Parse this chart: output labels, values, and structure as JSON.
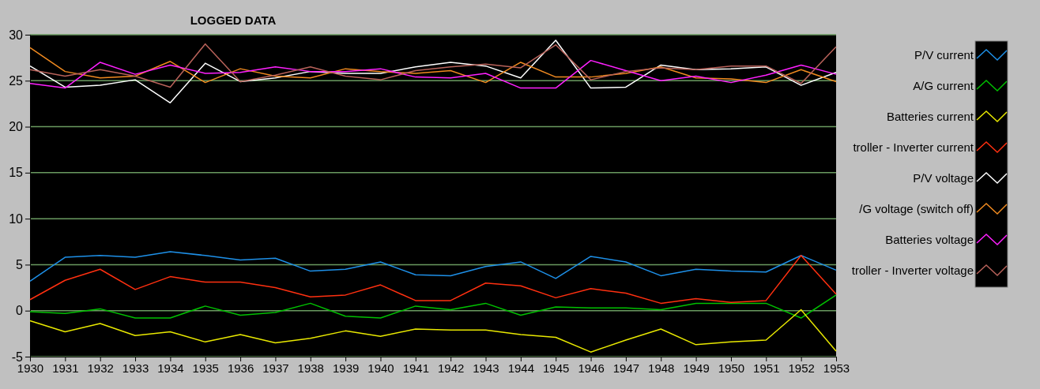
{
  "chart_data": {
    "type": "line",
    "title": "LOGGED DATA",
    "x": [
      1930,
      1931,
      1932,
      1933,
      1934,
      1935,
      1936,
      1937,
      1938,
      1939,
      1940,
      1941,
      1942,
      1943,
      1944,
      1945,
      1946,
      1947,
      1948,
      1949,
      1950,
      1951,
      1952,
      1953
    ],
    "xlim": [
      1930,
      1953
    ],
    "xticks": [
      1930,
      1931,
      1932,
      1933,
      1934,
      1935,
      1936,
      1937,
      1938,
      1939,
      1940,
      1941,
      1942,
      1943,
      1944,
      1945,
      1946,
      1947,
      1948,
      1949,
      1950,
      1951,
      1952,
      1953
    ],
    "ylim": [
      -5,
      30
    ],
    "yticks": [
      -5,
      0,
      5,
      10,
      15,
      20,
      25,
      30
    ],
    "grid": "y",
    "legend": "right",
    "marker": "none",
    "line_style": "solid",
    "series": [
      {
        "name": "P/V current",
        "color": "#1e90e8",
        "values": [
          3.2,
          5.8,
          6.0,
          5.8,
          6.4,
          6.0,
          5.5,
          5.7,
          4.3,
          4.5,
          5.3,
          3.9,
          3.8,
          4.8,
          5.3,
          3.5,
          5.9,
          5.3,
          3.8,
          4.5,
          4.3,
          4.2,
          6.0,
          4.4
        ]
      },
      {
        "name": "A/G current",
        "color": "#00c000",
        "values": [
          -0.1,
          -0.3,
          0.2,
          -0.8,
          -0.8,
          0.5,
          -0.5,
          -0.2,
          0.8,
          -0.6,
          -0.8,
          0.5,
          0.1,
          0.8,
          -0.5,
          0.4,
          0.3,
          0.3,
          0.1,
          0.8,
          0.8,
          0.8,
          -0.8,
          1.7
        ]
      },
      {
        "name": "Batteries current",
        "color": "#e8e800",
        "values": [
          -1.1,
          -2.3,
          -1.4,
          -2.7,
          -2.3,
          -3.4,
          -2.6,
          -3.5,
          -3.0,
          -2.2,
          -2.8,
          -2.0,
          -2.1,
          -2.1,
          -2.6,
          -2.9,
          -4.5,
          -3.2,
          -2.0,
          -3.7,
          -3.4,
          -3.2,
          0.1,
          -4.4
        ]
      },
      {
        "name": "troller - Inverter current",
        "color": "#ff3010",
        "values": [
          1.2,
          3.3,
          4.5,
          2.3,
          3.7,
          3.1,
          3.1,
          2.5,
          1.5,
          1.7,
          2.8,
          1.1,
          1.1,
          3.0,
          2.7,
          1.4,
          2.4,
          1.9,
          0.8,
          1.3,
          0.9,
          1.1,
          6.0,
          1.8
        ]
      },
      {
        "name": "P/V voltage",
        "color": "#ffffff",
        "values": [
          26.6,
          24.3,
          24.5,
          25.1,
          22.6,
          26.9,
          24.9,
          25.3,
          26.0,
          25.8,
          25.8,
          26.5,
          27.0,
          26.6,
          25.3,
          29.4,
          24.2,
          24.3,
          26.7,
          26.2,
          26.3,
          26.5,
          24.5,
          25.9
        ]
      },
      {
        "name": "/G voltage (switch off)",
        "color": "#f08a20",
        "values": [
          28.6,
          26.0,
          25.3,
          25.5,
          27.1,
          24.8,
          26.3,
          25.5,
          25.3,
          26.3,
          26.0,
          25.8,
          26.1,
          24.8,
          27.0,
          25.4,
          25.4,
          25.8,
          26.5,
          25.3,
          25.2,
          24.8,
          26.2,
          24.9
        ]
      },
      {
        "name": "Batteries voltage",
        "color": "#ff20ff",
        "values": [
          24.7,
          24.2,
          27.0,
          25.7,
          26.7,
          25.8,
          25.9,
          26.5,
          26.0,
          26.0,
          26.3,
          25.4,
          25.3,
          25.8,
          24.2,
          24.2,
          27.2,
          26.1,
          25.0,
          25.5,
          24.8,
          25.6,
          26.7,
          25.7
        ]
      },
      {
        "name": "troller - Inverter voltage",
        "color": "#b8625a",
        "values": [
          26.2,
          25.5,
          26.2,
          25.5,
          24.3,
          29.0,
          24.9,
          25.6,
          26.5,
          25.5,
          25.1,
          26.1,
          26.5,
          26.8,
          26.4,
          28.9,
          25.1,
          26.0,
          26.4,
          26.2,
          26.6,
          26.6,
          24.7,
          28.7
        ]
      }
    ]
  }
}
